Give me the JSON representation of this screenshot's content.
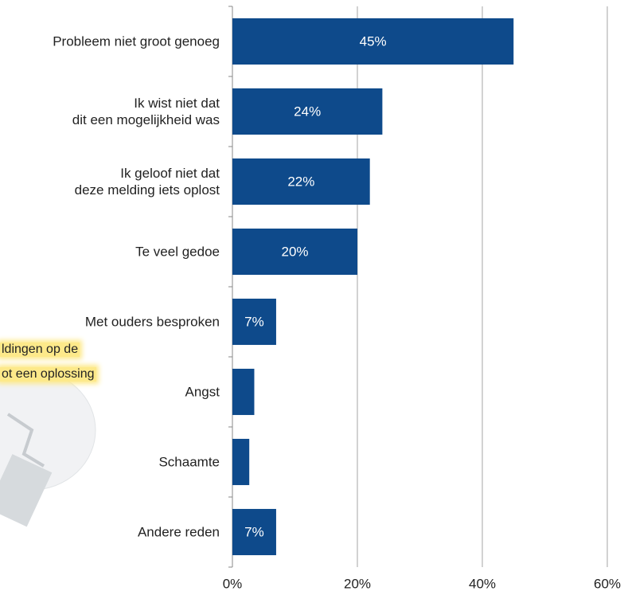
{
  "chart_data": {
    "type": "bar",
    "orientation": "horizontal",
    "categories": [
      "Probleem niet groot genoeg",
      "Ik wist niet dat\ndit een mogelijkheid was",
      "Ik geloof niet dat\ndeze melding iets oplost",
      "Te veel gedoe",
      "Met ouders besproken",
      "Angst",
      "Schaamte",
      "Andere reden"
    ],
    "values": [
      45,
      24,
      22,
      20,
      7,
      3.5,
      2.7,
      7
    ],
    "value_labels": [
      "45%",
      "24%",
      "22%",
      "20%",
      "7%",
      null,
      null,
      "7%"
    ],
    "color": "#0e4a8b",
    "xlim": [
      0,
      60
    ],
    "xticks": [
      {
        "value": 0,
        "label": "0%"
      },
      {
        "value": 20,
        "label": "20%"
      },
      {
        "value": 40,
        "label": "40%"
      },
      {
        "value": 60,
        "label": "60%"
      }
    ],
    "grid": true,
    "annotations": [
      "ldingen op de",
      "ot een oplossing"
    ]
  }
}
